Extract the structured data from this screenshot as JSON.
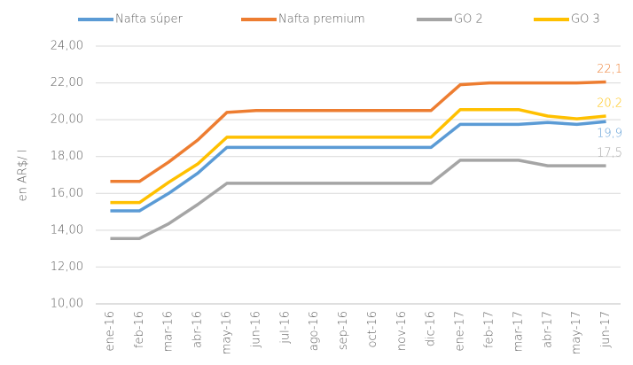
{
  "chart_data": {
    "type": "line",
    "y_label": "en AR$/ l",
    "categories": [
      "ene-16",
      "feb-16",
      "mar-16",
      "abr-16",
      "may-16",
      "jun-16",
      "jul-16",
      "ago-16",
      "sep-16",
      "oct-16",
      "nov-16",
      "dic-16",
      "ene-17",
      "feb-17",
      "mar-17",
      "abr-17",
      "may-17",
      "jun-17"
    ],
    "series": [
      {
        "name": "Nafta súper",
        "color": "#5b9bd5",
        "values": [
          15.05,
          15.05,
          16.0,
          17.1,
          18.5,
          18.5,
          18.5,
          18.5,
          18.5,
          18.5,
          18.5,
          18.5,
          19.75,
          19.75,
          19.75,
          19.85,
          19.75,
          19.9
        ],
        "value_labels": [
          null,
          null,
          null,
          null,
          null,
          null,
          null,
          null,
          null,
          null,
          null,
          null,
          null,
          null,
          null,
          null,
          null,
          "19,9"
        ]
      },
      {
        "name": "Nafta premium",
        "color": "#ed7d31",
        "values": [
          16.65,
          16.65,
          17.7,
          18.9,
          20.4,
          20.5,
          20.5,
          20.5,
          20.5,
          20.5,
          20.5,
          20.5,
          21.9,
          22.0,
          22.0,
          22.0,
          22.0,
          22.05
        ],
        "value_labels": [
          null,
          null,
          null,
          null,
          null,
          null,
          null,
          null,
          null,
          null,
          null,
          null,
          null,
          null,
          null,
          null,
          null,
          "22,1"
        ]
      },
      {
        "name": "GO 2",
        "color": "#a5a5a5",
        "values": [
          13.55,
          13.55,
          14.35,
          15.4,
          16.55,
          16.55,
          16.55,
          16.55,
          16.55,
          16.55,
          16.55,
          16.55,
          17.8,
          17.8,
          17.8,
          17.5,
          17.5,
          17.5
        ],
        "value_labels": [
          null,
          null,
          null,
          null,
          null,
          null,
          null,
          null,
          null,
          null,
          null,
          null,
          null,
          null,
          null,
          null,
          null,
          "17,5"
        ]
      },
      {
        "name": "GO 3",
        "color": "#ffc000",
        "values": [
          15.5,
          15.5,
          16.6,
          17.6,
          19.05,
          19.05,
          19.05,
          19.05,
          19.05,
          19.05,
          19.05,
          19.05,
          20.55,
          20.55,
          20.55,
          20.2,
          20.05,
          20.2
        ],
        "value_labels": [
          null,
          null,
          null,
          null,
          null,
          null,
          null,
          null,
          null,
          null,
          null,
          null,
          null,
          null,
          null,
          null,
          null,
          "20,2"
        ]
      }
    ],
    "ylim": [
      10,
      24
    ],
    "yticks": [
      {
        "value": 10,
        "label": "10,00"
      },
      {
        "value": 12,
        "label": "12,00"
      },
      {
        "value": 14,
        "label": "14,00"
      },
      {
        "value": 16,
        "label": "16,00"
      },
      {
        "value": 18,
        "label": "18,00"
      },
      {
        "value": 20,
        "label": "20,00"
      },
      {
        "value": 22,
        "label": "22,00"
      },
      {
        "value": 24,
        "label": "24,00"
      }
    ],
    "grid": true
  }
}
